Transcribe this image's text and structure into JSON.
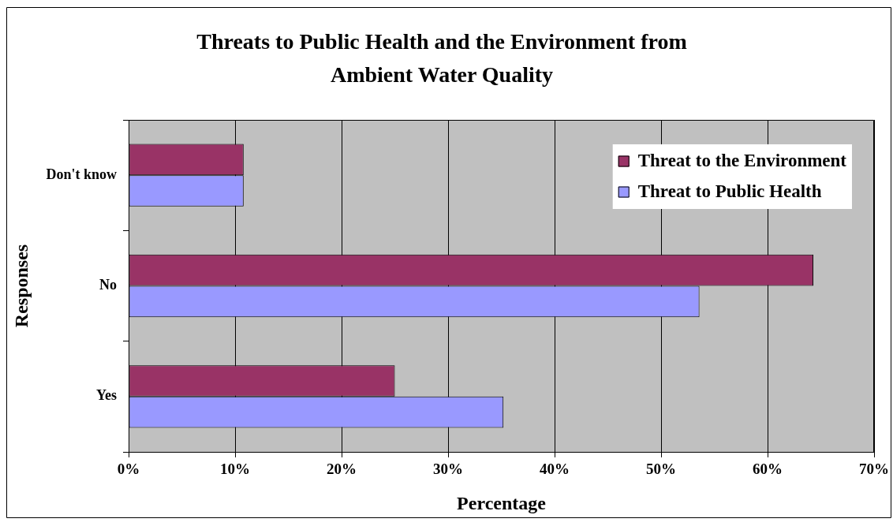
{
  "chart_data": {
    "type": "bar",
    "orientation": "horizontal",
    "title": "Threats to Public Health and the Environment from Ambient Water Quality",
    "xlabel": "Percentage",
    "ylabel": "Responses",
    "categories": [
      "Don't know",
      "No",
      "Yes"
    ],
    "series": [
      {
        "name": "Threat to the Environment",
        "color": "#993366",
        "values": [
          10.8,
          64.3,
          25.0
        ]
      },
      {
        "name": "Threat to Public Health",
        "color": "#9999ff",
        "values": [
          10.8,
          53.6,
          35.2
        ]
      }
    ],
    "xlim": [
      0,
      70
    ],
    "xticks": [
      {
        "value": 0,
        "label": "0%"
      },
      {
        "value": 10,
        "label": "10%"
      },
      {
        "value": 20,
        "label": "20%"
      },
      {
        "value": 30,
        "label": "30%"
      },
      {
        "value": 40,
        "label": "40%"
      },
      {
        "value": 50,
        "label": "50%"
      },
      {
        "value": 60,
        "label": "60%"
      },
      {
        "value": 70,
        "label": "70%"
      }
    ],
    "grid": "x",
    "legend": "top right"
  }
}
